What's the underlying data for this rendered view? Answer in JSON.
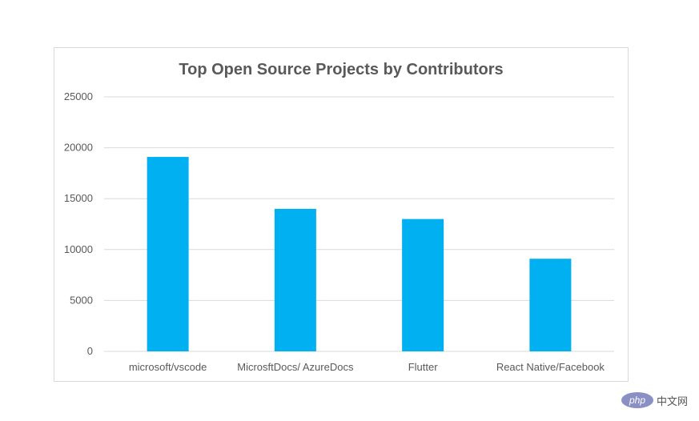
{
  "chart_data": {
    "type": "bar",
    "title": "Top Open Source Projects by Contributors",
    "categories": [
      "microsoft/vscode",
      "MicrosftDocs/ AzureDocs",
      "Flutter",
      "React Native/Facebook"
    ],
    "values": [
      19100,
      14000,
      13000,
      9100
    ],
    "ylim": [
      0,
      25000
    ],
    "yticks": [
      "0",
      "5000",
      "10000",
      "15000",
      "20000",
      "25000"
    ],
    "xlabel": "",
    "ylabel": "",
    "grid": true,
    "bar_color": "#00b0f0"
  },
  "watermark": {
    "logo_text": "php",
    "site_text": "中文网"
  }
}
